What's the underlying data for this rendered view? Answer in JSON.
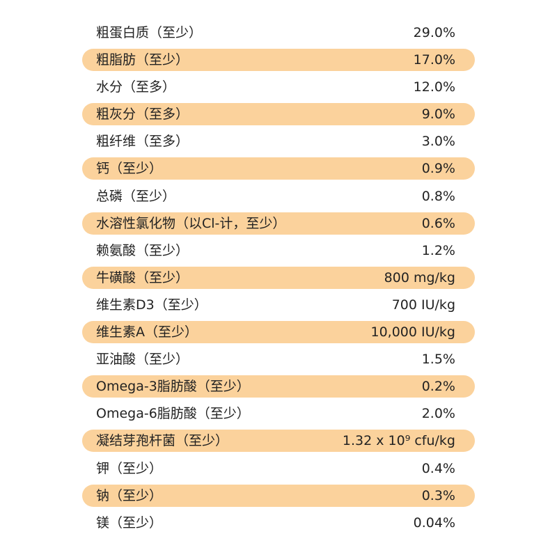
{
  "table": {
    "rows": [
      [
        "粗蛋白质（至少）",
        "29.0%"
      ],
      [
        "粗脂肪（至少）",
        "17.0%"
      ],
      [
        "水分（至多）",
        "12.0%"
      ],
      [
        "粗灰分（至多）",
        "9.0%"
      ],
      [
        "粗纤维（至多）",
        "3.0%"
      ],
      [
        "钙（至少）",
        "0.9%"
      ],
      [
        "总磷（至少）",
        "0.8%"
      ],
      [
        "水溶性氯化物（以Cl-计，至少）",
        "0.6%"
      ],
      [
        "赖氨酸（至少）",
        "1.2%"
      ],
      [
        "牛磺酸（至少）",
        "800 mg/kg"
      ],
      [
        "维生素D3（至少）",
        "700 IU/kg"
      ],
      [
        "维生素A（至少）",
        "10,000 IU/kg"
      ],
      [
        "亚油酸（至少）",
        "1.5%"
      ],
      [
        "Omega-3脂肪酸（至少）",
        "0.2%"
      ],
      [
        "Omega-6脂肪酸（至少）",
        "2.0%"
      ],
      [
        "凝结芽孢杆菌（至少）",
        "1.32 x 10⁹ cfu/kg"
      ],
      [
        "钾（至少）",
        "0.4%"
      ],
      [
        "钠（至少）",
        "0.3%"
      ],
      [
        "镁（至少）",
        "0.04%"
      ]
    ]
  }
}
